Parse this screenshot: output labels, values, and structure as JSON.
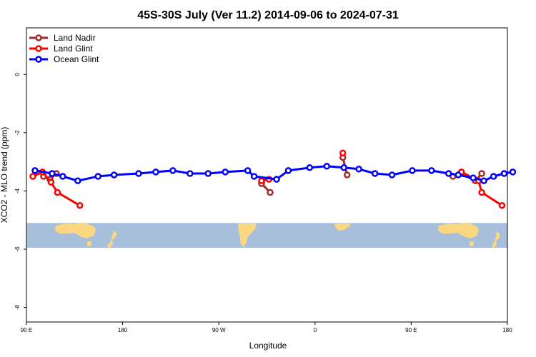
{
  "chart_data": {
    "type": "line",
    "title": "45S-30S July (Ver 11.2)   2014-09-06 to 2024-07-31",
    "xlabel": "Longitude",
    "ylabel": "XCO2 - MLO trend (ppm)",
    "x_ticks": [
      {
        "value": 90,
        "label": "90 E"
      },
      {
        "value": 180,
        "label": "180"
      },
      {
        "value": 270,
        "label": "90 W"
      },
      {
        "value": 360,
        "label": "0"
      },
      {
        "value": 450,
        "label": "90 E"
      },
      {
        "value": 540,
        "label": "180"
      }
    ],
    "y_ticks": [
      {
        "value": 0,
        "label": "0"
      },
      {
        "value": -2,
        "label": "-2"
      },
      {
        "value": -4,
        "label": "-4"
      },
      {
        "value": -6,
        "label": "-6"
      },
      {
        "value": -8,
        "label": "-8"
      }
    ],
    "xlim": [
      90,
      540
    ],
    "ylim": [
      -8.5,
      1.6
    ],
    "grid": false,
    "legend_position": "top-left",
    "map_strip": {
      "lat_range": [
        "45S",
        "30S"
      ],
      "y_range": [
        -5.1,
        -5.95
      ],
      "ocean_color": "#a8bfdc",
      "land_color": "#fbd87f"
    },
    "series": [
      {
        "name": "Land Nadir",
        "color": "#a52a2a",
        "segments": [
          [
            [
              106,
              -3.5
            ],
            [
              112,
              -3.6
            ],
            [
              118,
              -3.4
            ]
          ],
          [
            [
              310,
              -3.7
            ],
            [
              310,
              -3.75
            ],
            [
              318,
              -4.05
            ]
          ],
          [
            [
              386,
              -2.85
            ],
            [
              390,
              -3.45
            ]
          ],
          [
            [
              489,
              -3.5
            ],
            [
              496,
              -3.4
            ],
            [
              510,
              -3.65
            ],
            [
              516,
              -3.4
            ]
          ]
        ]
      },
      {
        "name": "Land Glint",
        "color": "#ff0000",
        "segments": [
          [
            [
              96,
              -3.5
            ],
            [
              105,
              -3.35
            ],
            [
              113,
              -3.7
            ],
            [
              119,
              -4.05
            ],
            [
              140,
              -4.5
            ]
          ],
          [
            [
              310,
              -3.65
            ],
            [
              317,
              -3.6
            ]
          ],
          [
            [
              386,
              -2.7
            ]
          ],
          [
            [
              497,
              -3.35
            ],
            [
              513,
              -3.65
            ],
            [
              516,
              -4.05
            ],
            [
              535,
              -4.5
            ]
          ]
        ]
      },
      {
        "name": "Ocean Glint",
        "color": "#0000ff",
        "segments": [
          [
            [
              98,
              -3.3
            ],
            [
              114,
              -3.4
            ],
            [
              124,
              -3.5
            ],
            [
              138,
              -3.65
            ],
            [
              157,
              -3.5
            ],
            [
              172,
              -3.45
            ],
            [
              195,
              -3.4
            ],
            [
              211,
              -3.35
            ],
            [
              227,
              -3.3
            ],
            [
              243,
              -3.4
            ],
            [
              260,
              -3.4
            ],
            [
              276,
              -3.35
            ],
            [
              297,
              -3.3
            ],
            [
              303,
              -3.5
            ],
            [
              324,
              -3.6
            ],
            [
              335,
              -3.3
            ],
            [
              355,
              -3.2
            ],
            [
              371,
              -3.15
            ],
            [
              387,
              -3.2
            ],
            [
              401,
              -3.25
            ],
            [
              416,
              -3.4
            ],
            [
              432,
              -3.45
            ],
            [
              451,
              -3.3
            ],
            [
              469,
              -3.3
            ],
            [
              485,
              -3.4
            ],
            [
              494,
              -3.45
            ],
            [
              508,
              -3.55
            ],
            [
              518,
              -3.65
            ],
            [
              527,
              -3.5
            ],
            [
              537,
              -3.4
            ],
            [
              545,
              -3.35
            ]
          ]
        ]
      }
    ]
  }
}
